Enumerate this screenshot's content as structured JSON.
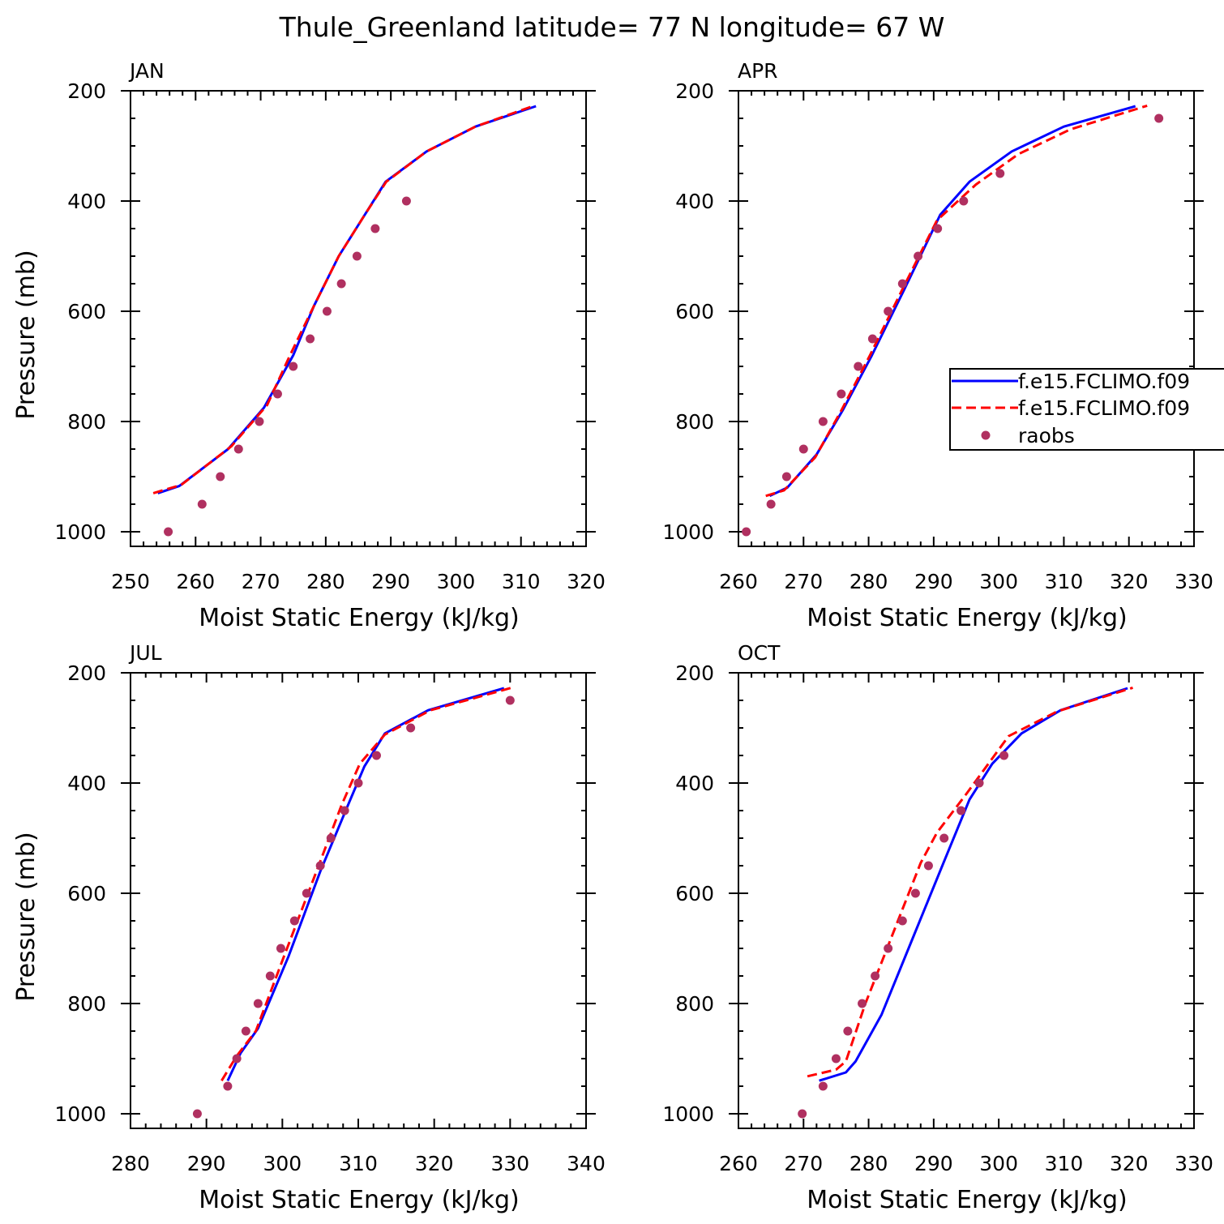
{
  "figure_title": "Thule_Greenland  latitude= 77 N longitude= 67 W",
  "colors": {
    "model_a": "#0000ff",
    "model_b": "#ff0000",
    "raobs": "#b03060",
    "axis": "#000000"
  },
  "legend": {
    "entries": [
      {
        "label": "f.e15.FCLIMO.f09",
        "style": "solid",
        "color": "#0000ff"
      },
      {
        "label": "f.e15.FCLIMO.f09",
        "style": "dashed",
        "color": "#ff0000"
      },
      {
        "label": "raobs",
        "style": "marker",
        "color": "#b03060"
      }
    ]
  },
  "chart_data": [
    {
      "panel": "JAN",
      "type": "line",
      "xlabel": "Moist Static Energy (kJ/kg)",
      "ylabel": "Pressure (mb)",
      "xlim": [
        250,
        320
      ],
      "ylim": [
        1000,
        200
      ],
      "xticks": [
        250,
        260,
        270,
        280,
        290,
        300,
        310,
        320
      ],
      "yticks": [
        200,
        400,
        600,
        800,
        1000
      ],
      "series": [
        {
          "name": "f.e15.FCLIMO.f09",
          "style": "solid",
          "x": [
            254.2,
            257.5,
            265.0,
            270.5,
            275.0,
            278.2,
            282.0,
            286.0,
            289.2,
            295.5,
            303.0,
            312.3
          ],
          "y": [
            930,
            917,
            850,
            775,
            680,
            590,
            500,
            425,
            365,
            310,
            265,
            228
          ]
        },
        {
          "name": "f.e15.FCLIMO.f09",
          "style": "dashed",
          "x": [
            253.5,
            257.8,
            265.5,
            271.0,
            274.5,
            278.2,
            282.0,
            286.0,
            289.3,
            295.5,
            303.0,
            312.0
          ],
          "y": [
            930,
            915,
            845,
            770,
            680,
            590,
            500,
            425,
            365,
            310,
            265,
            227
          ]
        },
        {
          "name": "raobs",
          "style": "markers",
          "x": [
            255.8,
            261.0,
            263.8,
            266.6,
            269.8,
            272.6,
            275.0,
            277.6,
            280.2,
            282.4,
            284.8,
            287.6,
            292.4
          ],
          "y": [
            1000,
            950,
            900,
            850,
            800,
            750,
            700,
            650,
            600,
            550,
            500,
            450,
            400
          ]
        }
      ]
    },
    {
      "panel": "APR",
      "type": "line",
      "xlabel": "Moist Static Energy (kJ/kg)",
      "ylabel": "",
      "xlim": [
        260,
        330
      ],
      "ylim": [
        1000,
        200
      ],
      "xticks": [
        260,
        270,
        280,
        290,
        300,
        310,
        320,
        330
      ],
      "yticks": [
        200,
        400,
        600,
        800,
        1000
      ],
      "series": [
        {
          "name": "f.e15.FCLIMO.f09",
          "style": "solid",
          "x": [
            264.8,
            267.5,
            272.0,
            276.0,
            280.5,
            285.5,
            291.0,
            295.5,
            302.0,
            310.0,
            321.0
          ],
          "y": [
            935,
            920,
            860,
            780,
            680,
            560,
            425,
            365,
            310,
            265,
            228
          ]
        },
        {
          "name": "f.e15.FCLIMO.f09",
          "style": "dashed",
          "x": [
            264.2,
            267.0,
            271.8,
            275.8,
            280.2,
            285.2,
            290.5,
            296.5,
            303.0,
            311.0,
            322.8
          ],
          "y": [
            935,
            925,
            865,
            780,
            680,
            560,
            435,
            370,
            315,
            270,
            227
          ]
        },
        {
          "name": "raobs",
          "style": "markers",
          "x": [
            261.2,
            265.0,
            267.4,
            270.0,
            273.0,
            275.8,
            278.4,
            280.6,
            283.0,
            285.2,
            287.6,
            290.6,
            294.6,
            300.2,
            324.6
          ],
          "y": [
            1000,
            950,
            900,
            850,
            800,
            750,
            700,
            650,
            600,
            550,
            500,
            450,
            400,
            350,
            250
          ]
        }
      ]
    },
    {
      "panel": "JUL",
      "type": "line",
      "xlabel": "Moist Static Energy (kJ/kg)",
      "ylabel": "Pressure (mb)",
      "xlim": [
        280,
        340
      ],
      "ylim": [
        1000,
        200
      ],
      "xticks": [
        280,
        290,
        300,
        310,
        320,
        330,
        340
      ],
      "yticks": [
        200,
        400,
        600,
        800,
        1000
      ],
      "series": [
        {
          "name": "f.e15.FCLIMO.f09",
          "style": "solid",
          "x": [
            292.8,
            294.5,
            296.8,
            300.8,
            305.0,
            308.5,
            310.8,
            313.5,
            319.2,
            329.2
          ],
          "y": [
            940,
            890,
            845,
            715,
            560,
            445,
            370,
            310,
            268,
            228
          ]
        },
        {
          "name": "f.e15.FCLIMO.f09",
          "style": "dashed",
          "x": [
            292.0,
            294.0,
            296.5,
            300.2,
            304.5,
            307.8,
            310.2,
            313.5,
            319.5,
            330.2
          ],
          "y": [
            940,
            895,
            850,
            715,
            560,
            440,
            365,
            312,
            268,
            227
          ]
        },
        {
          "name": "raobs",
          "style": "markers",
          "x": [
            288.8,
            292.8,
            294.0,
            295.2,
            296.8,
            298.4,
            299.8,
            301.6,
            303.2,
            305.0,
            306.4,
            308.2,
            310.0,
            312.4,
            316.9,
            330.0
          ],
          "y": [
            1000,
            950,
            900,
            850,
            800,
            750,
            700,
            650,
            600,
            550,
            500,
            450,
            400,
            350,
            300,
            250
          ]
        }
      ]
    },
    {
      "panel": "OCT",
      "type": "line",
      "xlabel": "Moist Static Energy (kJ/kg)",
      "ylabel": "",
      "xlim": [
        260,
        330
      ],
      "ylim": [
        1000,
        200
      ],
      "xticks": [
        260,
        270,
        280,
        290,
        300,
        310,
        320,
        330
      ],
      "yticks": [
        200,
        400,
        600,
        800,
        1000
      ],
      "series": [
        {
          "name": "f.e15.FCLIMO.f09",
          "style": "solid",
          "x": [
            272.4,
            276.5,
            278.0,
            282.0,
            287.0,
            291.5,
            295.5,
            299.0,
            303.5,
            309.5,
            319.8
          ],
          "y": [
            940,
            925,
            905,
            820,
            675,
            545,
            430,
            365,
            310,
            268,
            228
          ]
        },
        {
          "name": "f.e15.FCLIMO.f09",
          "style": "dashed",
          "x": [
            270.6,
            275.0,
            276.5,
            279.5,
            283.5,
            288.0,
            290.5,
            295.0,
            301.5,
            309.0,
            320.6
          ],
          "y": [
            932,
            920,
            905,
            800,
            680,
            545,
            490,
            420,
            315,
            270,
            227
          ]
        },
        {
          "name": "raobs",
          "style": "markers",
          "x": [
            269.8,
            273.0,
            275.0,
            276.8,
            279.0,
            281.0,
            283.0,
            285.2,
            287.2,
            289.2,
            291.6,
            294.2,
            297.0,
            300.8
          ],
          "y": [
            1000,
            950,
            900,
            850,
            800,
            750,
            700,
            650,
            600,
            550,
            500,
            450,
            400,
            350
          ]
        }
      ]
    }
  ]
}
